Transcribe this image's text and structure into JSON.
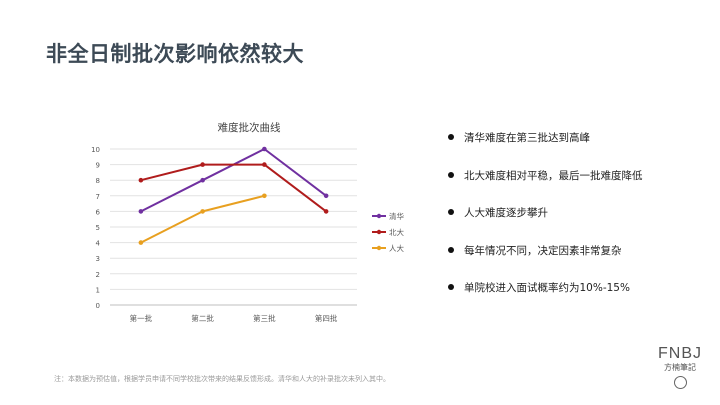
{
  "slide": {
    "title": "非全日制批次影响依然较大",
    "bullets": [
      "清华难度在第三批达到高峰",
      "北大难度相对平稳，最后一批难度降低",
      "人大难度逐步攀升",
      "每年情况不同，决定因素非常复杂",
      "单院校进入面试概率约为10%-15%"
    ],
    "note": "注：本数据为预估值，根据学员申请不同学校批次带来的结果反馈形成。清华和人大的补录批次未列入其中。",
    "logo": {
      "main": "FNBJ",
      "sub": "方楠筆記"
    }
  },
  "chart_data": {
    "type": "line",
    "title": "难度批次曲线",
    "categories": [
      "第一批",
      "第二批",
      "第三批",
      "第四批"
    ],
    "series": [
      {
        "name": "清华",
        "color": "#7030a0",
        "values": [
          6,
          8,
          10,
          7
        ]
      },
      {
        "name": "北大",
        "color": "#b01c1c",
        "values": [
          8,
          9,
          9,
          6
        ]
      },
      {
        "name": "人大",
        "color": "#e8a020",
        "values": [
          4,
          6,
          7,
          null
        ]
      }
    ],
    "ylim": [
      0,
      10
    ],
    "yticks": [
      0,
      1,
      2,
      3,
      4,
      5,
      6,
      7,
      8,
      9,
      10
    ],
    "grid": true,
    "legend": "right"
  }
}
